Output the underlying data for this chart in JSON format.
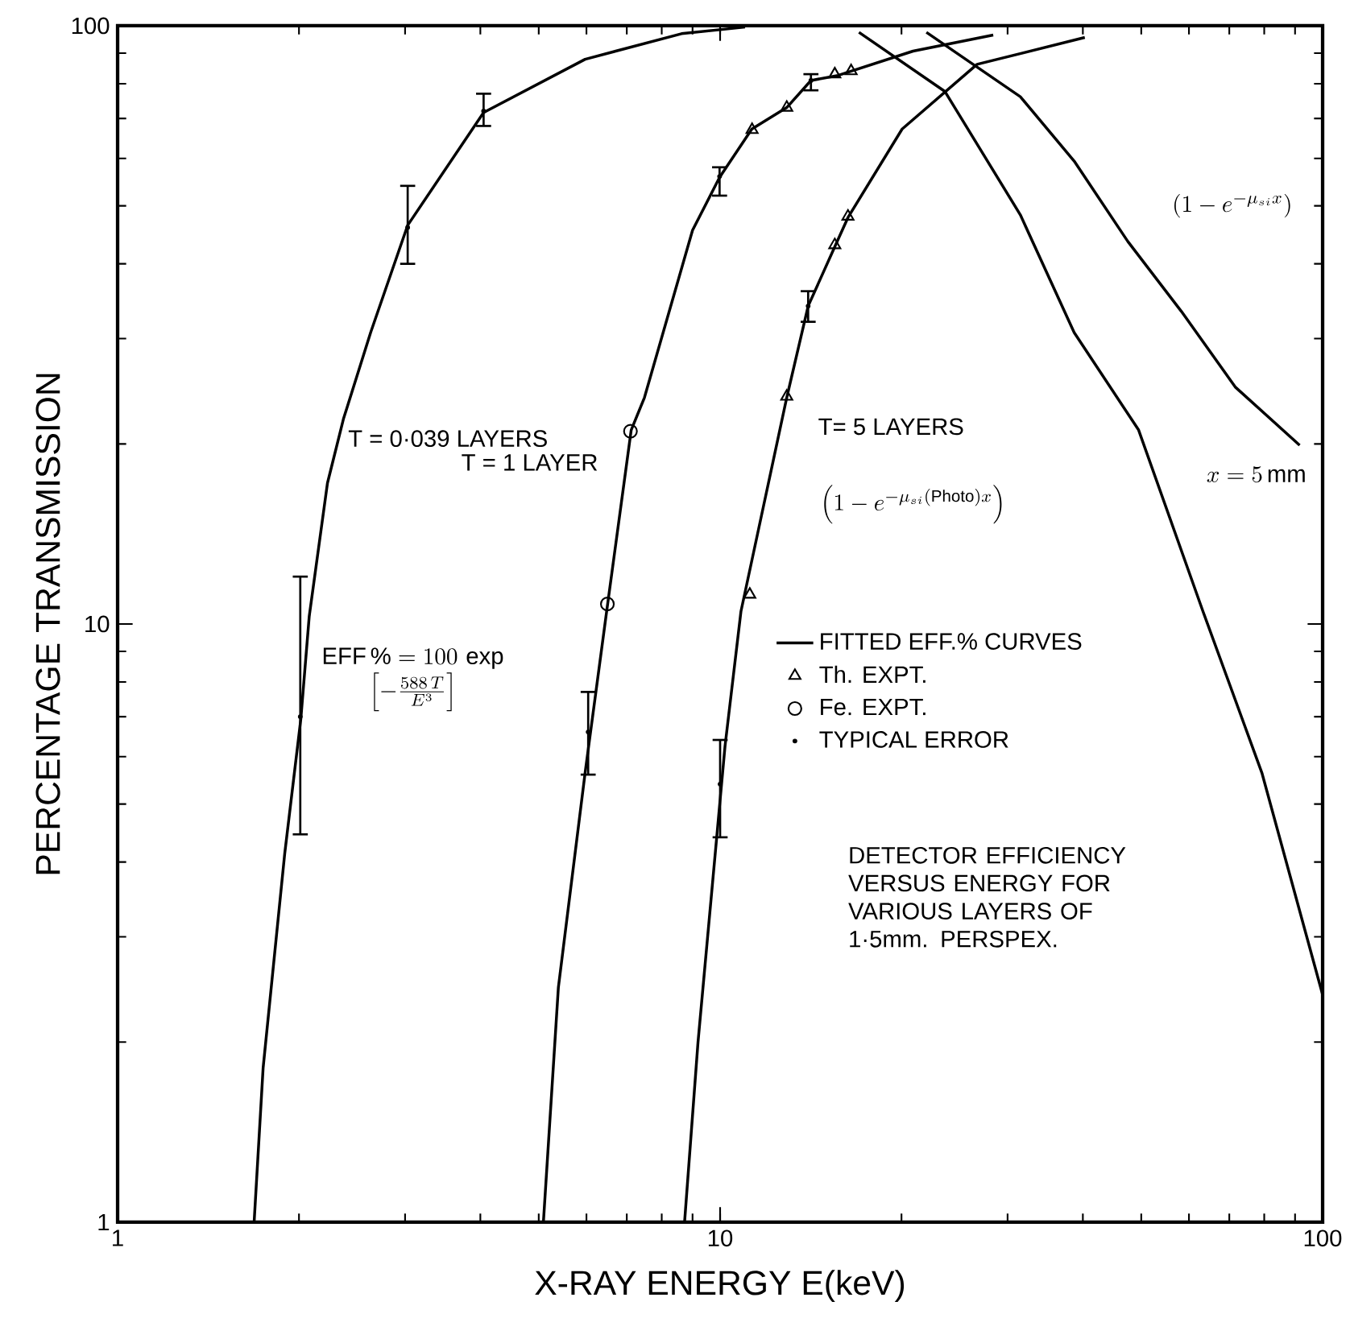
{
  "chart_data": {
    "type": "line",
    "xlabel": "X-RAY ENERGY E(keV)",
    "ylabel": "PERCENTAGE TRANSMISSION",
    "log": "xy",
    "xlim": [
      1,
      100
    ],
    "ylim": [
      1,
      100
    ],
    "xticks": [
      1,
      10,
      100
    ],
    "yticks": [
      1,
      10,
      100
    ],
    "grid": false,
    "legend": "right",
    "series": [
      {
        "name": "FITTED EFF.% CURVES",
        "type": "line",
        "color": "#000000",
        "marker": "none",
        "x": [
          1.685,
          1.744,
          1.894,
          2.014,
          2.08,
          2.23,
          2.37,
          2.63,
          3.03,
          4.05,
          5.97,
          8.63,
          11
        ],
        "values": [
          1,
          1.81,
          4.13,
          6.93,
          10.3,
          17.2,
          22,
          30.7,
          46.4,
          71.6,
          87.9,
          97,
          99.5
        ]
      },
      {
        "type": "line",
        "color": "#000000",
        "marker": "none",
        "x": [
          5.09,
          5.39,
          5.97,
          6.49,
          7.12,
          7.49,
          9.0,
          9.98,
          11.29,
          12.9,
          14.15,
          15.7,
          20.9,
          28.4
        ],
        "values": [
          1,
          2.47,
          5.64,
          10.6,
          21.1,
          23.9,
          45.5,
          55.8,
          67.2,
          73,
          81,
          82.6,
          90.7,
          96.5
        ]
      },
      {
        "type": "line",
        "color": "#000000",
        "marker": "none",
        "x": [
          8.73,
          9.19,
          10.19,
          10.83,
          12.9,
          14.0,
          15.5,
          16.3,
          20.05,
          26.7,
          40.3
        ],
        "values": [
          1,
          2.0,
          6.25,
          10.5,
          23.9,
          34,
          42.7,
          47.8,
          67.2,
          86.2,
          95.6
        ]
      },
      {
        "type": "line",
        "color": "#000000",
        "marker": "none",
        "x": [
          17,
          23.6,
          31.5,
          38.7,
          49.5,
          63.3,
          79.3,
          100
        ],
        "values": [
          97.5,
          77.7,
          48.3,
          30.7,
          21.1,
          10.5,
          5.64,
          2.4
        ]
      },
      {
        "type": "line",
        "color": "#000000",
        "marker": "none",
        "x": [
          22,
          31.5,
          38.7,
          47.5,
          58.3,
          71.6,
          91.6
        ],
        "values": [
          97.5,
          76.1,
          59.4,
          43.6,
          33.3,
          24.9,
          19.9
        ]
      },
      {
        "name": "Th. EXPT.",
        "type": "scatter",
        "color": "#000000",
        "marker": "triangle",
        "x": [
          11.3,
          12.9,
          15.5,
          16.5,
          11.2,
          12.9,
          15.5,
          16.3
        ],
        "values": [
          67,
          73,
          83,
          84,
          11.2,
          24,
          43,
          48
        ]
      },
      {
        "name": "Fe. EXPT.",
        "type": "scatter",
        "color": "#000000",
        "marker": "circle",
        "x": [
          6.5,
          7.1
        ],
        "values": [
          10.8,
          21
        ]
      },
      {
        "name": "TYPICAL ERROR",
        "type": "scatter",
        "color": "#000000",
        "x": [
          2.01,
          3.03,
          4.05,
          6.04,
          9.98,
          14.15,
          10.0,
          14.0
        ],
        "values": [
          7.0,
          46,
          72,
          6.6,
          56,
          81,
          5.4,
          34
        ],
        "errors": [
          [
            4.45,
            12
          ],
          [
            40,
            54
          ],
          [
            68,
            77
          ],
          [
            5.6,
            7.7
          ],
          [
            52,
            58
          ],
          [
            78,
            83
          ],
          [
            4.4,
            6.4
          ],
          [
            32,
            36
          ]
        ]
      }
    ],
    "annotations": [
      "T = 0·039 LAYERS",
      "T = 1 LAYER",
      "T= 5 LAYERS",
      "\\begin{array}{c}\\mathrm{EFF}\\,\\% = 100\\,\\exp\\\\ \\left[-\\frac{588\\,T}{E^{3}}\\right]\\end{array}",
      "\\left(1-e^{-\\mu_{si}x}\\right)",
      "\\left(1-e^{-\\mu_{si}(\\mathrm{Photo})x}\\right)",
      "x=5\\,\\mathrm{mm}",
      "DETECTOR EFFICIENCY VERSUS ENERGY FOR VARIOUS LAYERS OF 1·5mm. PERSPEX."
    ]
  }
}
